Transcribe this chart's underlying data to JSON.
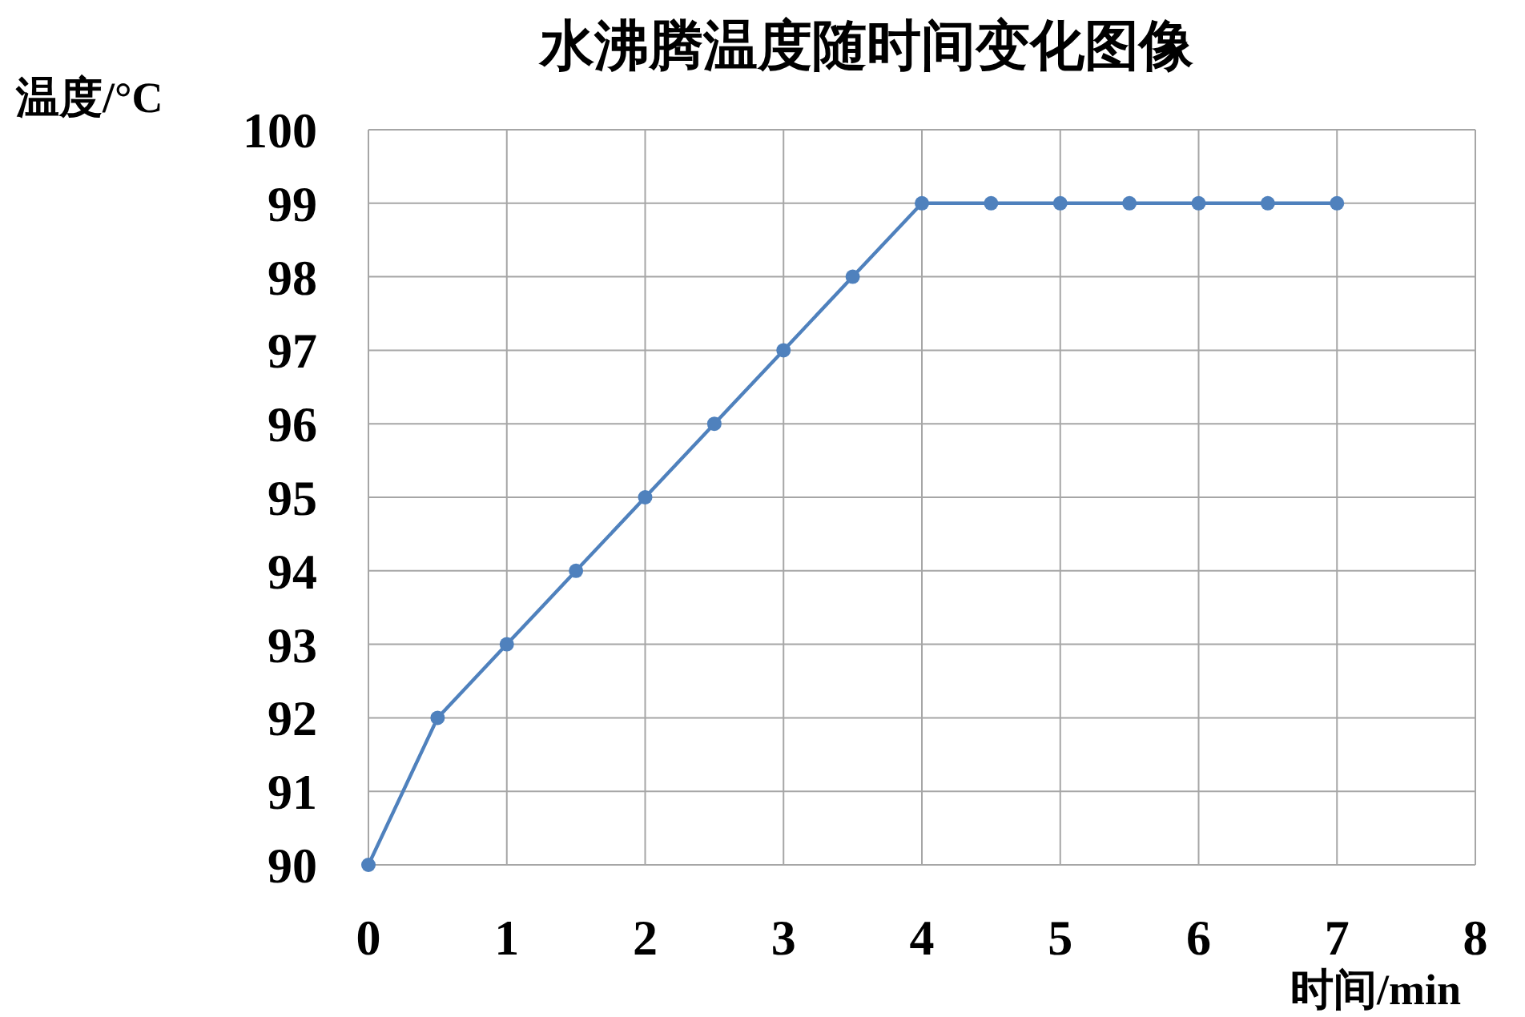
{
  "chart_data": {
    "type": "line",
    "title": "水沸腾温度随时间变化图像",
    "ylabel": "温度/°C",
    "xlabel": "时间/min",
    "x": [
      0,
      0.5,
      1,
      1.5,
      2,
      2.5,
      3,
      3.5,
      4,
      4.5,
      5,
      5.5,
      6,
      6.5,
      7
    ],
    "series": [
      {
        "color": "#4f81bd",
        "values": [
          90,
          92,
          93,
          94,
          95,
          96,
          97,
          98,
          99,
          99,
          99,
          99,
          99,
          99,
          99
        ]
      }
    ],
    "xlim": [
      0,
      8
    ],
    "xticks": [
      0,
      1,
      2,
      3,
      4,
      5,
      6,
      7,
      8
    ],
    "ylim": [
      90,
      100
    ],
    "yticks": [
      90,
      91,
      92,
      93,
      94,
      95,
      96,
      97,
      98,
      99,
      100
    ],
    "grid": true,
    "marker": "circle",
    "line_style": "solid"
  }
}
